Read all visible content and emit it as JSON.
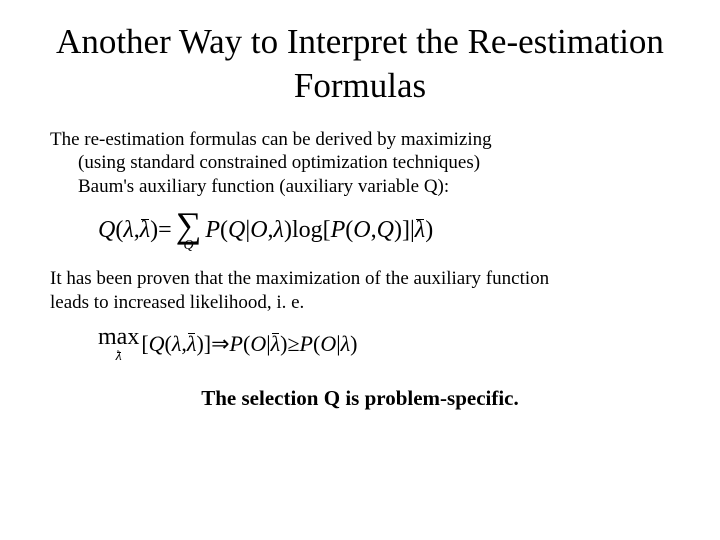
{
  "title": "Another Way to Interpret the Re-estimation Formulas",
  "para1_line1": "The re-estimation formulas can be derived by maximizing",
  "para1_line2": "(using standard constrained optimization techniques)",
  "para1_line3": "Baum's auxiliary function (auxiliary variable Q):",
  "para2_line1": "It has been proven that the maximization of the auxiliary function",
  "para2_line2": "leads to increased likelihood, i. e.",
  "closing": "The selection Q is problem-specific.",
  "formula1": {
    "lhs_Q": "Q",
    "lp": "(",
    "lambda": "λ",
    "comma": ", ",
    "lambda_bar": "λ",
    "rp": ")",
    "eq": " = ",
    "sigma": "∑",
    "sigma_sub": "Q",
    "P": "P",
    "O": "O",
    "log": " log",
    "lb": "[",
    "rb": "]",
    "pipe": " | ",
    "Qvar": "Q"
  },
  "formula2": {
    "max": "max",
    "sub_lambda_bar": "λ",
    "lb": "[",
    "rb": "]",
    "Q": "Q",
    "lp": "(",
    "lambda": "λ",
    "comma": ", ",
    "lambda_bar": "λ",
    "rp": ")",
    "imply": " ⇒ ",
    "P": "P",
    "O": "O",
    "pipe": " | ",
    "ge": " ≥ "
  },
  "style": {
    "title_fontsize": 35,
    "body_fontsize": 19,
    "formula_fontsize": 24,
    "closing_fontsize": 21,
    "text_color": "#000000",
    "background_color": "#ffffff"
  }
}
